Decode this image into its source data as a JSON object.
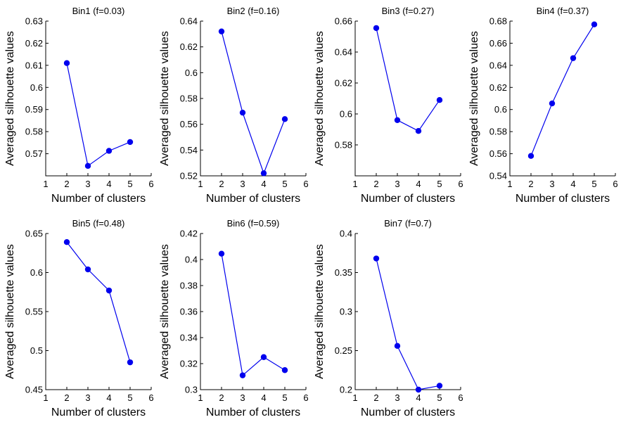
{
  "chart_data": [
    {
      "type": "line",
      "title": "Bin1 (f=0.03)",
      "xlabel": "Number of clusters",
      "ylabel": "Averaged silhouette values",
      "xlim": [
        1,
        6
      ],
      "ylim": [
        0.56,
        0.63
      ],
      "xticks": [
        "1",
        "2",
        "3",
        "4",
        "5",
        "6"
      ],
      "yticks": [
        "0.57",
        "0.58",
        "0.59",
        "0.6",
        "0.61",
        "0.62",
        "0.63"
      ],
      "x": [
        2,
        3,
        4,
        5
      ],
      "y": [
        0.611,
        0.5645,
        0.5713,
        0.5753
      ],
      "color": "#0000ee"
    },
    {
      "type": "line",
      "title": "Bin2 (f=0.16)",
      "xlabel": "Number of clusters",
      "ylabel": "Averaged silhouette values",
      "xlim": [
        1,
        6
      ],
      "ylim": [
        0.52,
        0.64
      ],
      "xticks": [
        "1",
        "2",
        "3",
        "4",
        "5",
        "6"
      ],
      "yticks": [
        "0.52",
        "0.54",
        "0.56",
        "0.58",
        "0.6",
        "0.62",
        "0.64"
      ],
      "x": [
        2,
        3,
        4,
        5
      ],
      "y": [
        0.632,
        0.569,
        0.522,
        0.564
      ],
      "color": "#0000ee"
    },
    {
      "type": "line",
      "title": "Bin3 (f=0.27)",
      "xlabel": "Number of clusters",
      "ylabel": "Averaged silhouette values",
      "xlim": [
        1,
        6
      ],
      "ylim": [
        0.56,
        0.66
      ],
      "xticks": [
        "1",
        "2",
        "3",
        "4",
        "5",
        "6"
      ],
      "yticks": [
        "0.58",
        "0.6",
        "0.62",
        "0.64",
        "0.66"
      ],
      "x": [
        2,
        3,
        4,
        5
      ],
      "y": [
        0.6555,
        0.596,
        0.589,
        0.609
      ],
      "color": "#0000ee"
    },
    {
      "type": "line",
      "title": "Bin4 (f=0.37)",
      "xlabel": "Number of clusters",
      "ylabel": "Averaged silhouette values",
      "xlim": [
        1,
        6
      ],
      "ylim": [
        0.54,
        0.68
      ],
      "xticks": [
        "1",
        "2",
        "3",
        "4",
        "5",
        "6"
      ],
      "yticks": [
        "0.54",
        "0.56",
        "0.58",
        "0.6",
        "0.62",
        "0.64",
        "0.66",
        "0.68"
      ],
      "x": [
        2,
        3,
        4,
        5
      ],
      "y": [
        0.558,
        0.6055,
        0.6465,
        0.677
      ],
      "color": "#0000ee"
    },
    {
      "type": "line",
      "title": "Bin5 (f=0.48)",
      "xlabel": "Number of clusters",
      "ylabel": "Averaged silhouette values",
      "xlim": [
        1,
        6
      ],
      "ylim": [
        0.45,
        0.65
      ],
      "xticks": [
        "1",
        "2",
        "3",
        "4",
        "5",
        "6"
      ],
      "yticks": [
        "0.45",
        "0.5",
        "0.55",
        "0.6",
        "0.65"
      ],
      "x": [
        2,
        3,
        4,
        5
      ],
      "y": [
        0.639,
        0.604,
        0.577,
        0.485
      ],
      "color": "#0000ee"
    },
    {
      "type": "line",
      "title": "Bin6 (f=0.59)",
      "xlabel": "Number of clusters",
      "ylabel": "Averaged silhouette values",
      "xlim": [
        1,
        6
      ],
      "ylim": [
        0.3,
        0.42
      ],
      "xticks": [
        "1",
        "2",
        "3",
        "4",
        "5",
        "6"
      ],
      "yticks": [
        "0.3",
        "0.32",
        "0.34",
        "0.36",
        "0.38",
        "0.4",
        "0.42"
      ],
      "x": [
        2,
        3,
        4,
        5
      ],
      "y": [
        0.4045,
        0.311,
        0.325,
        0.315
      ],
      "color": "#0000ee"
    },
    {
      "type": "line",
      "title": "Bin7 (f=0.7)",
      "xlabel": "Number of clusters",
      "ylabel": "Averaged silhouette values",
      "xlim": [
        1,
        6
      ],
      "ylim": [
        0.2,
        0.4
      ],
      "xticks": [
        "1",
        "2",
        "3",
        "4",
        "5",
        "6"
      ],
      "yticks": [
        "0.2",
        "0.25",
        "0.3",
        "0.35",
        "0.4"
      ],
      "x": [
        2,
        3,
        4,
        5
      ],
      "y": [
        0.368,
        0.256,
        0.2,
        0.205
      ],
      "color": "#0000ee"
    }
  ]
}
